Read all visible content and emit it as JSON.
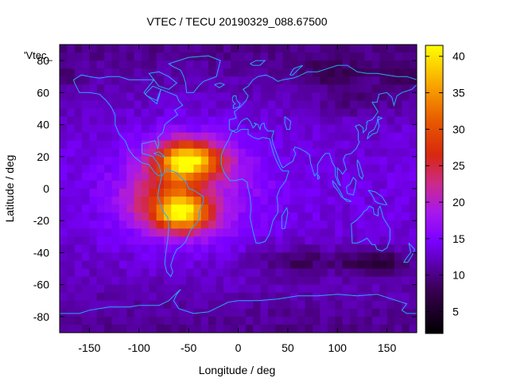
{
  "chart_data": {
    "type": "heatmap",
    "title": "VTEC / TECU 20190329_088.67500",
    "xlabel": "Longitude / deg",
    "ylabel": "Latitude / deg",
    "legend_key": "'Vtec_",
    "xlim": [
      -180,
      180
    ],
    "ylim": [
      -90,
      90
    ],
    "x_ticks": [
      -150,
      -100,
      -50,
      0,
      50,
      100,
      150
    ],
    "y_ticks": [
      -80,
      -60,
      -40,
      -20,
      0,
      20,
      40,
      60,
      80
    ],
    "colorbar": {
      "min": 2,
      "max": 41.5,
      "ticks": [
        5,
        10,
        15,
        20,
        25,
        30,
        35,
        40
      ],
      "palette": "black-purple-red-yellow"
    },
    "grid": false,
    "coastline_color": "#2aa7ff",
    "grid_step_deg": [
      7.5,
      5.0
    ],
    "features": [
      {
        "name": "equatorial anomaly north crest",
        "lon": -45,
        "lat": 18,
        "vtec": 40
      },
      {
        "name": "equatorial anomaly south crest",
        "lon": -55,
        "lat": -16,
        "vtec": 40
      },
      {
        "name": "anomaly core",
        "lon": -60,
        "lat": 2,
        "vtec": 34
      },
      {
        "name": "background mid-latitude",
        "vtec": 12
      },
      {
        "name": "background polar",
        "vtec": 9
      },
      {
        "name": "nightside trough",
        "lon": 140,
        "lat": -45,
        "vtec": 4
      }
    ]
  }
}
